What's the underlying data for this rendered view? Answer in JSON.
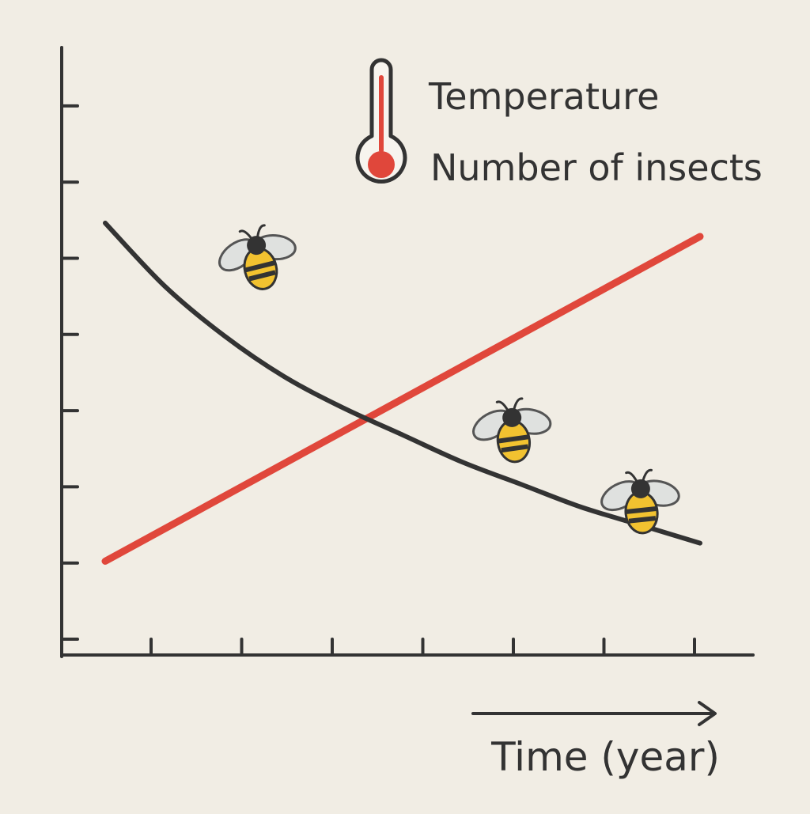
{
  "chart_data": {
    "type": "line",
    "title": "",
    "xlabel": "Time (year)",
    "ylabel": "",
    "x_tick_count": 7,
    "y_tick_count": 8,
    "xlim": [
      0,
      10
    ],
    "ylim": [
      0,
      10
    ],
    "grid": false,
    "legend_position": "top-right",
    "legend_icon": "thermometer-icon",
    "decorations": [
      "bee-icon",
      "bee-icon",
      "bee-icon"
    ],
    "series": [
      {
        "name": "Temperature",
        "color": "#e0473b",
        "x": [
          0,
          10
        ],
        "y": [
          0.8,
          8.0
        ]
      },
      {
        "name": "Number of insects",
        "color": "#333333",
        "x": [
          0,
          1,
          2,
          3,
          4,
          5,
          6,
          7,
          8,
          9,
          10
        ],
        "y": [
          8.3,
          6.9,
          5.8,
          4.9,
          4.2,
          3.6,
          3.0,
          2.5,
          2.0,
          1.6,
          1.2
        ]
      }
    ]
  }
}
